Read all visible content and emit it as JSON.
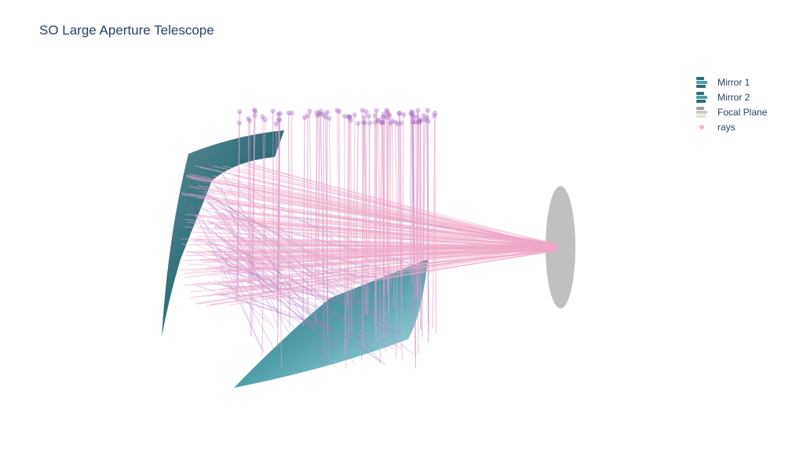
{
  "title": "SO Large Aperture Telescope",
  "legend": [
    {
      "name": "Mirror 1",
      "colors": [
        "#2a6f79",
        "#4f9ea8",
        "#8ccfd4"
      ]
    },
    {
      "name": "Mirror 2",
      "colors": [
        "#2a6f79",
        "#4f9ea8",
        "#8ccfd4"
      ]
    },
    {
      "name": "Focal Plane",
      "colors": [
        "#9fa3a8",
        "#c9ccc4",
        "#e6e4c8"
      ]
    },
    {
      "name": "rays",
      "colors": [
        "#f3b6cf"
      ]
    }
  ],
  "chart_data": {
    "type": "scatter3d",
    "title": "SO Large Aperture Telescope",
    "series": [
      {
        "name": "Mirror 1",
        "kind": "surface",
        "colorscale": [
          "#1f5f68",
          "#4f9ea8",
          "#a8e4e6"
        ]
      },
      {
        "name": "Mirror 2",
        "kind": "surface",
        "colorscale": [
          "#1f5f68",
          "#4f9ea8",
          "#a8e4e6"
        ]
      },
      {
        "name": "Focal Plane",
        "kind": "surface",
        "color": "#c0c0c0"
      },
      {
        "name": "rays",
        "kind": "lines+markers",
        "color": "#f0a8c8",
        "marker_color_start": "#9b59b6"
      }
    ]
  }
}
